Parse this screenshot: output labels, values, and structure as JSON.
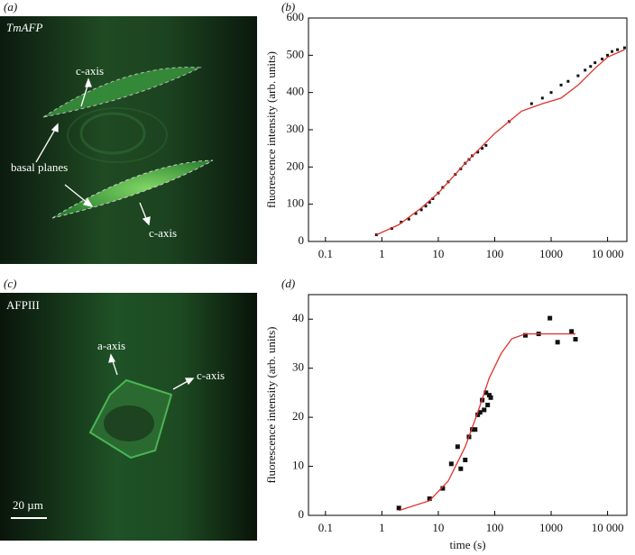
{
  "panels": {
    "a": {
      "label": "(a)",
      "title": "TmAFP",
      "annotations": [
        "c-axis",
        "basal planes",
        "c-axis"
      ]
    },
    "c": {
      "label": "(c)",
      "title": "AFPIII",
      "annotations": [
        "a-axis",
        "c-axis"
      ],
      "scale_bar": "20 µm"
    }
  },
  "chart_data": [
    {
      "type": "scatter",
      "panel_label": "(b)",
      "y_label": "fluorescence intensity (arb. units)",
      "log_x": true,
      "xlim": [
        0.05,
        22000
      ],
      "xticks": [
        0.1,
        1,
        10,
        100,
        1000,
        {
          "value": 10000,
          "label": "10 000"
        }
      ],
      "ylim": [
        0,
        600
      ],
      "yticks": [
        0,
        100,
        200,
        300,
        400,
        500,
        600
      ],
      "series": [
        {
          "style": "markers",
          "color": "#111111",
          "x": [
            0.8,
            1.5,
            2.2,
            3,
            4,
            5,
            6,
            7,
            8,
            10,
            12,
            15,
            20,
            25,
            30,
            35,
            40,
            50,
            60,
            70,
            180,
            450,
            700,
            1000,
            1500,
            2000,
            3000,
            4000,
            5000,
            6000,
            8000,
            10000,
            12000,
            15000,
            20000
          ],
          "values": [
            18,
            35,
            52,
            60,
            75,
            85,
            95,
            105,
            115,
            130,
            145,
            160,
            180,
            195,
            210,
            220,
            230,
            240,
            250,
            258,
            322,
            370,
            385,
            400,
            420,
            430,
            445,
            460,
            470,
            480,
            490,
            500,
            510,
            515,
            520
          ]
        },
        {
          "style": "line",
          "color": "#e0302a",
          "x": [
            0.8,
            2,
            5,
            10,
            30,
            100,
            300,
            700,
            1500,
            3000,
            6000,
            10000,
            20000
          ],
          "values": [
            18,
            45,
            90,
            130,
            210,
            290,
            350,
            370,
            385,
            420,
            465,
            495,
            515
          ]
        }
      ]
    },
    {
      "type": "scatter",
      "panel_label": "(d)",
      "y_label": "fluorescence intensity (arb. units)",
      "x_label": "time (s)",
      "log_x": true,
      "xlim": [
        0.05,
        22000
      ],
      "xticks": [
        0.1,
        1,
        10,
        100,
        1000,
        {
          "value": 10000,
          "label": "10 000"
        }
      ],
      "ylim": [
        0,
        45
      ],
      "yticks": [
        0,
        10,
        20,
        30,
        40
      ],
      "series": [
        {
          "style": "markers",
          "color": "#111111",
          "x": [
            2,
            7,
            12,
            17,
            22,
            25,
            30,
            35,
            40,
            45,
            50,
            55,
            60,
            65,
            70,
            75,
            80,
            85,
            350,
            600,
            950,
            1300,
            2300,
            2700
          ],
          "values": [
            1.5,
            3.4,
            5.5,
            10.5,
            14,
            9.5,
            11.3,
            16,
            17.5,
            17.5,
            20.5,
            21,
            23.5,
            21.5,
            25,
            22.5,
            24.5,
            24,
            36.7,
            37,
            40.2,
            35.3,
            37.5,
            35.9
          ]
        },
        {
          "style": "line",
          "color": "#e0302a",
          "x": [
            2,
            7,
            15,
            30,
            50,
            80,
            130,
            200,
            350,
            2700
          ],
          "values": [
            1,
            3,
            7,
            14,
            21,
            28,
            33,
            36,
            37,
            37
          ]
        }
      ]
    }
  ]
}
